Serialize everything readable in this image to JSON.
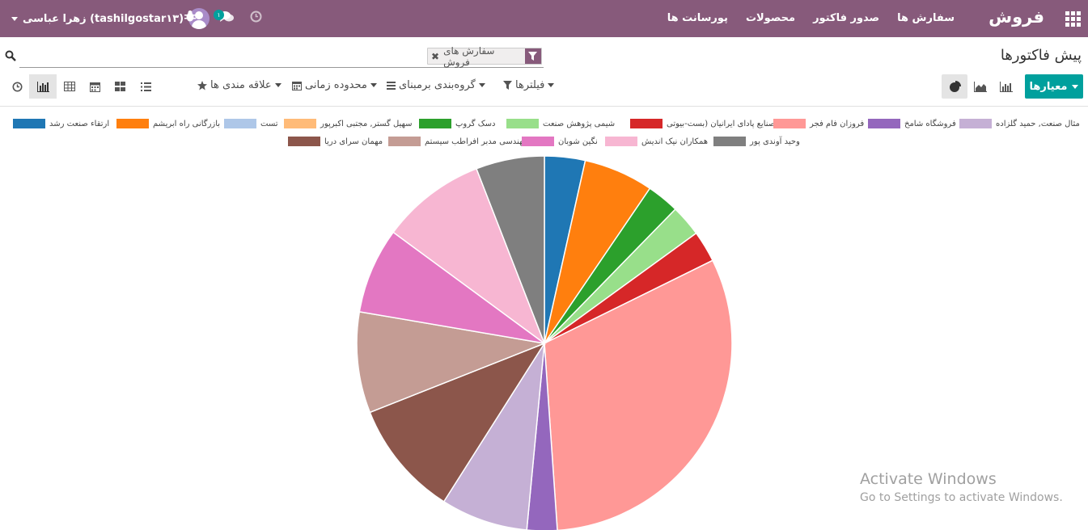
{
  "navbar": {
    "brand": "فروش",
    "menu": [
      "سفارش ها",
      "صدور فاکتور",
      "محصولات",
      "پورسانت ها"
    ],
    "user_name": "زهرا عباسی (tashilgostar۱۳)",
    "chat_badge": "۱",
    "bg_color": "#875a7b"
  },
  "control_panel": {
    "title": "پیش فاکتورها",
    "facet_label": "سفارش های فروش",
    "measures_label": "معیارها",
    "filters_label": "فیلترها",
    "groupby_label": "گروه‌بندی برمبنای",
    "timerange_label": "محدوده زمانی",
    "favorites_label": "علاقه مندی ها",
    "accent_color": "#00a09d"
  },
  "chart_data": {
    "type": "pie",
    "legend": [
      {
        "name": "ارتقاء صنعت رشد",
        "color": "#1f77b4",
        "value": 3.5
      },
      {
        "name": "بازرگانی راه ابریشم",
        "color": "#ff7f0e",
        "value": 6.0
      },
      {
        "name": "تست",
        "color": "#aec7e8",
        "value": 0
      },
      {
        "name": "سهیل گستر, مجتبی اکبرپور",
        "color": "#ffbb78",
        "value": 0
      },
      {
        "name": "دسک گروپ",
        "color": "#2ca02c",
        "value": 2.8
      },
      {
        "name": "شیمی پژوهش صنعت",
        "color": "#98df8a",
        "value": 2.7
      },
      {
        "name": "صنایع پادای ایرانیان (بست-بیوتی...",
        "color": "#d62728",
        "value": 2.7
      },
      {
        "name": "فروزان فام فجر",
        "color": "#ff9896",
        "value": 31.2
      },
      {
        "name": "فروشگاه شامخ",
        "color": "#9467bd",
        "value": 2.6
      },
      {
        "name": "مثال صنعت, حمید گلزاده",
        "color": "#c5b0d5",
        "value": 7.5
      },
      {
        "name": "مهمان سرای دریا",
        "color": "#8c564b",
        "value": 10.0
      },
      {
        "name": "مهندسی مدبر افراطب سیستم",
        "color": "#c49c94",
        "value": 8.7
      },
      {
        "name": "نگین شوبان",
        "color": "#e377c2",
        "value": 7.4
      },
      {
        "name": "همکاران نیک اندیش",
        "color": "#f7b6d2",
        "value": 9.0
      },
      {
        "name": "وحید آوندی پور",
        "color": "#7f7f7f",
        "value": 5.9
      }
    ]
  },
  "watermark": {
    "line1": "Activate Windows",
    "line2": "Go to Settings to activate Windows."
  }
}
